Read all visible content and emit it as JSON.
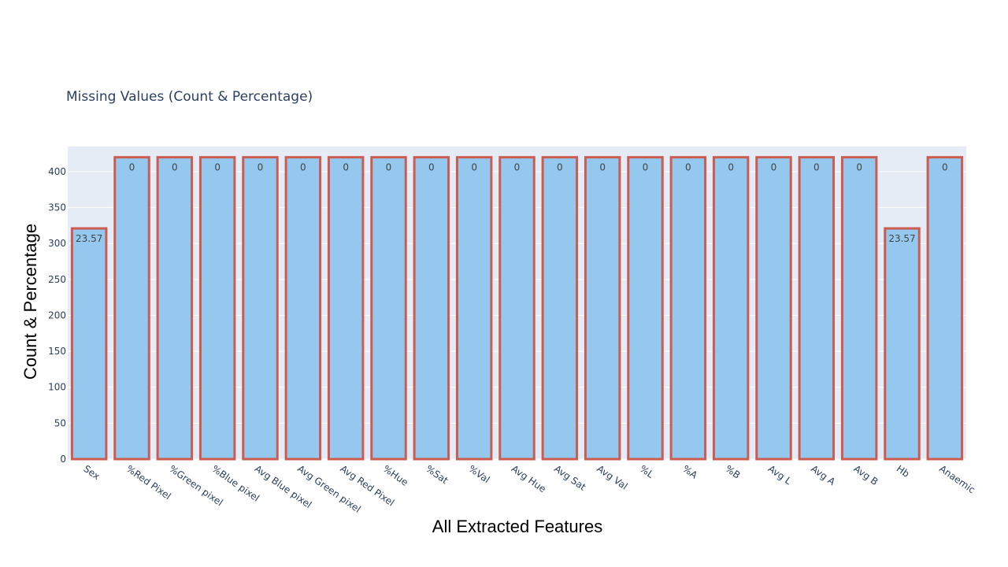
{
  "chart_data": {
    "type": "bar",
    "title": "Missing Values (Count & Percentage)",
    "xlabel": "All Extracted Features",
    "ylabel": "Count & Percentage",
    "ylim": [
      0,
      435
    ],
    "yticks": [
      0,
      50,
      100,
      150,
      200,
      250,
      300,
      350,
      400
    ],
    "grid": true,
    "categories": [
      "Sex",
      "%Red Pixel",
      "%Green pixel",
      "%Blue pixel",
      "Avg Blue pixel",
      "Avg Green pixel",
      "Avg Red Pixel",
      "%Hue",
      "%Sat",
      "%Val",
      "Avg Hue",
      "Avg Sat",
      "Avg Val",
      "%L",
      "%A",
      "%B",
      "Avg L",
      "Avg A",
      "Avg B",
      "Hb",
      "Anaemic"
    ],
    "values": [
      321,
      420,
      420,
      420,
      420,
      420,
      420,
      420,
      420,
      420,
      420,
      420,
      420,
      420,
      420,
      420,
      420,
      420,
      420,
      321,
      420
    ],
    "data_labels": [
      "23.57",
      "0",
      "0",
      "0",
      "0",
      "0",
      "0",
      "0",
      "0",
      "0",
      "0",
      "0",
      "0",
      "0",
      "0",
      "0",
      "0",
      "0",
      "0",
      "23.57",
      "0"
    ],
    "colors": {
      "bar_fill": "#94c8ee",
      "bar_edge": "#cd5c50",
      "plot_bg": "#e5ecf6",
      "grid": "#ffffff",
      "text": "#2a3f5f"
    }
  }
}
